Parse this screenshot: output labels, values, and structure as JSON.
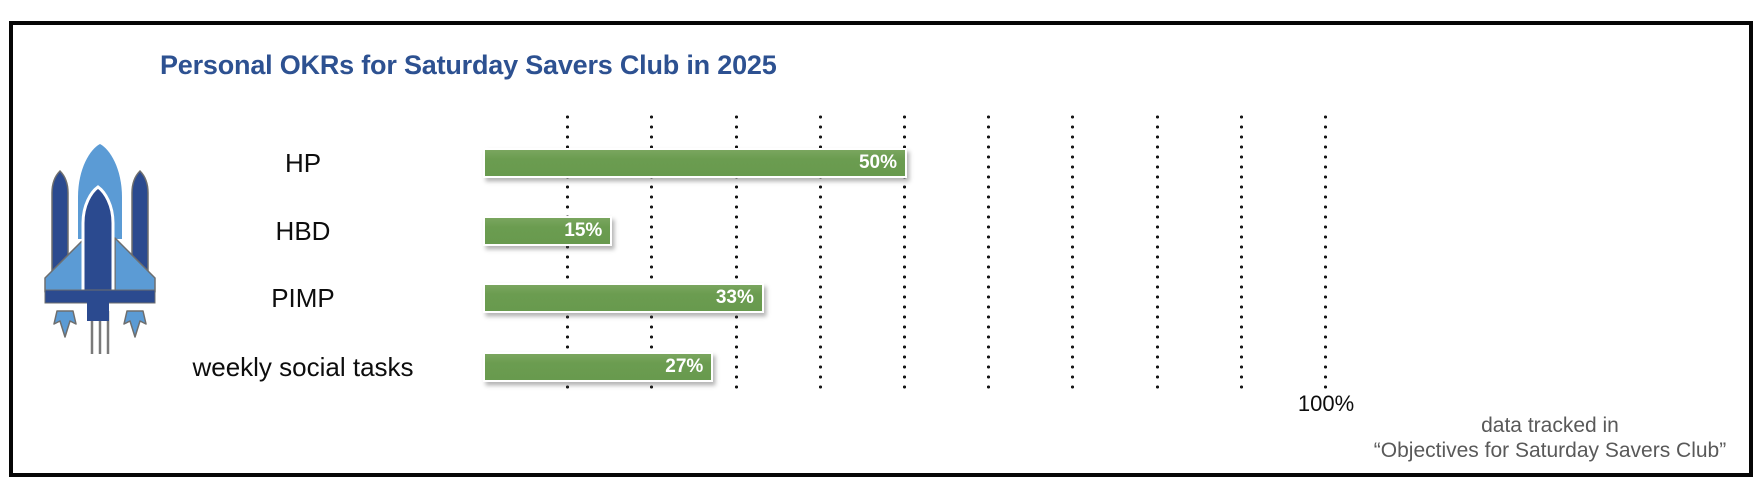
{
  "header": {
    "title": "Personal OKRs for Saturday Savers Club in 2025"
  },
  "chart_data": {
    "type": "bar",
    "orientation": "horizontal",
    "title": "Personal OKRs for Saturday Savers Club in 2025",
    "categories": [
      "HP",
      "HBD",
      "PIMP",
      "weekly social tasks"
    ],
    "values": [
      50,
      15,
      33,
      27
    ],
    "data_labels": [
      "50%",
      "15%",
      "33%",
      "27%"
    ],
    "xlim": [
      0,
      100
    ],
    "gridlines_percent": [
      10,
      20,
      30,
      40,
      50,
      60,
      70,
      80,
      90,
      100
    ],
    "gridline_style": "dotted-vertical",
    "visible_axis_tick": "100%",
    "legend": "none",
    "bar_color": "#6B9C50",
    "data_label_position": "inside-end"
  },
  "axis": {
    "label_100": "100%"
  },
  "footer": {
    "line1": "data tracked in",
    "line2": "“Objectives for Saturday Savers Club”"
  },
  "icon": {
    "name": "space-shuttle-icon",
    "dark_blue": "#2B4A8F",
    "light_blue": "#5B9BD5",
    "gray": "#7a7a7a"
  },
  "colors": {
    "title_text": "#2D5191",
    "bar_green": "#6B9C50",
    "category_text": "#0D0D0D",
    "footer_text": "#595959",
    "frame_border": "#060606",
    "background": "#FFFFFF",
    "gridline": "#161616"
  }
}
